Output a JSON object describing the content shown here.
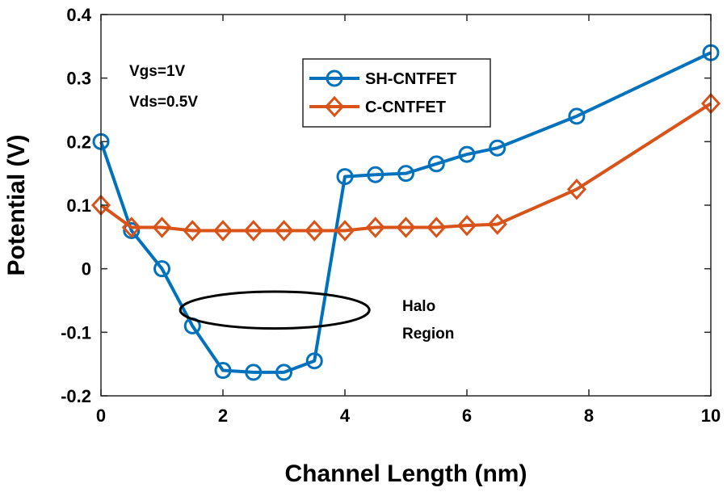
{
  "chart_data": {
    "type": "line",
    "title": "",
    "xlabel": "Channel Length  (nm)",
    "ylabel": "Potential  (V)",
    "xlim": [
      0,
      10
    ],
    "ylim": [
      -0.2,
      0.4
    ],
    "xticks": [
      0,
      2,
      4,
      6,
      8,
      10
    ],
    "yticks": [
      0.4,
      0.3,
      0.2,
      0.1,
      0,
      -0.1,
      -0.2
    ],
    "xtick_labels": [
      "0",
      "2",
      "4",
      "6",
      "8",
      "10"
    ],
    "ytick_labels": [
      "0.4",
      "0.3",
      "0.2",
      "0.1",
      "0",
      "-0.1",
      "-0.2"
    ],
    "legend_position": "top-center",
    "grid": false,
    "series": [
      {
        "name": "SH-CNTFET",
        "color": "#0072BD",
        "marker": "circle",
        "x": [
          0,
          0.5,
          1,
          1.5,
          2,
          2.5,
          3,
          3.5,
          4,
          4.5,
          5,
          5.5,
          6,
          6.5,
          7.8,
          10
        ],
        "y": [
          0.2,
          0.06,
          0.0,
          -0.09,
          -0.16,
          -0.163,
          -0.163,
          -0.145,
          0.145,
          0.148,
          0.15,
          0.165,
          0.18,
          0.19,
          0.24,
          0.34
        ]
      },
      {
        "name": "C-CNTFET",
        "color": "#D95319",
        "marker": "diamond",
        "x": [
          0,
          0.5,
          1,
          1.5,
          2,
          2.5,
          3,
          3.5,
          4,
          4.5,
          5,
          5.5,
          6,
          6.5,
          7.8,
          10
        ],
        "y": [
          0.1,
          0.065,
          0.065,
          0.06,
          0.06,
          0.06,
          0.06,
          0.06,
          0.06,
          0.065,
          0.065,
          0.065,
          0.068,
          0.07,
          0.125,
          0.26
        ]
      }
    ],
    "annotations": {
      "vgs": "Vgs=1V",
      "vds": "Vds=0.5V",
      "halo_line1": "Halo",
      "halo_line2": "Region"
    },
    "halo_ellipse": {
      "x_center": 2.85,
      "y_center": -0.065,
      "x_radius": 1.55,
      "y_radius": 0.029
    }
  }
}
